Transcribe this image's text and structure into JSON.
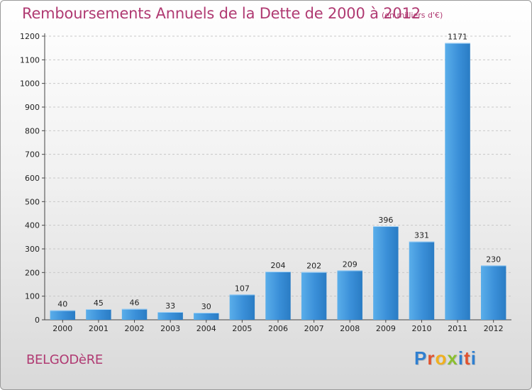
{
  "header": {
    "title": "Remboursements Annuels de la Dette de 2000 à 2012",
    "subtitle": "(en milliers d'€)"
  },
  "footer": {
    "commune": "BELGODèRE",
    "brand_letters": [
      "P",
      "r",
      "o",
      "x",
      "i",
      "t",
      "i"
    ],
    "brand_colors": [
      "#2f7fd0",
      "#e0522e",
      "#f0b020",
      "#8bbf2f",
      "#2f7fd0",
      "#e0522e",
      "#2f7fd0"
    ]
  },
  "colors": {
    "bar": "#3a8fd8",
    "bar_light": "#5aaeea",
    "title": "#b03a72",
    "grid": "#c8c8c8"
  },
  "chart_data": {
    "type": "bar",
    "categories": [
      "2000",
      "2001",
      "2002",
      "2003",
      "2004",
      "2005",
      "2006",
      "2007",
      "2008",
      "2009",
      "2010",
      "2011",
      "2012"
    ],
    "values": [
      40,
      45,
      46,
      33,
      30,
      107,
      204,
      202,
      209,
      396,
      331,
      1171,
      230
    ],
    "title": "Remboursements Annuels de la Dette de 2000 à 2012",
    "subtitle": "(en milliers d'€)",
    "ylim": [
      0,
      1200
    ],
    "yticks": [
      0,
      100,
      200,
      300,
      400,
      500,
      600,
      700,
      800,
      900,
      1000,
      1100,
      1200
    ],
    "grid": true,
    "data_labels": true
  }
}
